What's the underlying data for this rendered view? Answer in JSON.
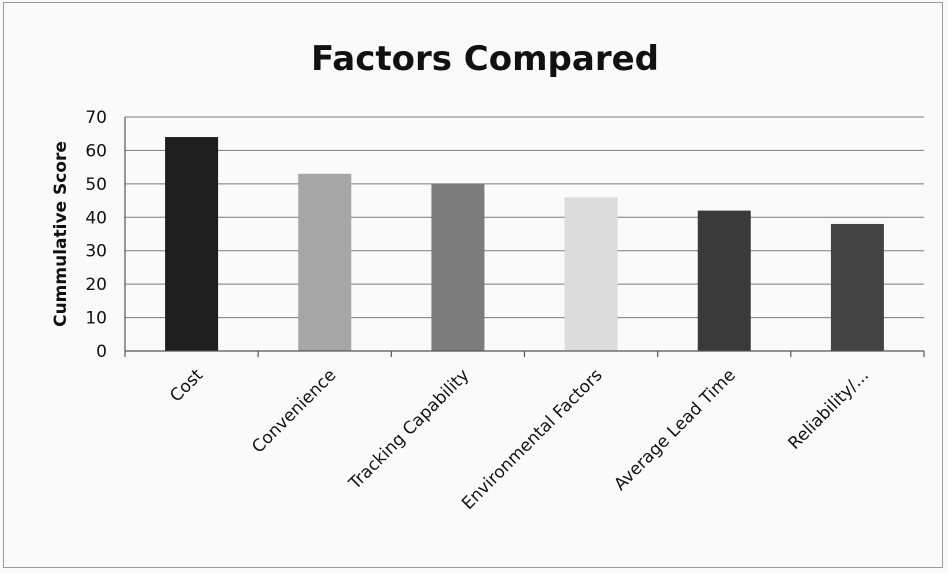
{
  "chart_data": {
    "type": "bar",
    "title": "Factors Compared",
    "xlabel": "",
    "ylabel": "Cummulative Score",
    "categories": [
      "Cost",
      "Convenience",
      "Tracking Capability",
      "Environmental Factors",
      "Average Lead Time",
      "Reliability/..."
    ],
    "values": [
      64,
      53,
      50,
      46,
      42,
      38
    ],
    "ylim": [
      0,
      70
    ],
    "yticks": [
      "0",
      "10",
      "20",
      "30",
      "40",
      "50",
      "60",
      "70"
    ],
    "grid": true,
    "legend": "none",
    "bar_colors": [
      "#1e1e1e",
      "#a6a6a6",
      "#7d7d7d",
      "#dcdcdc",
      "#3a3a3a",
      "#444444"
    ]
  }
}
